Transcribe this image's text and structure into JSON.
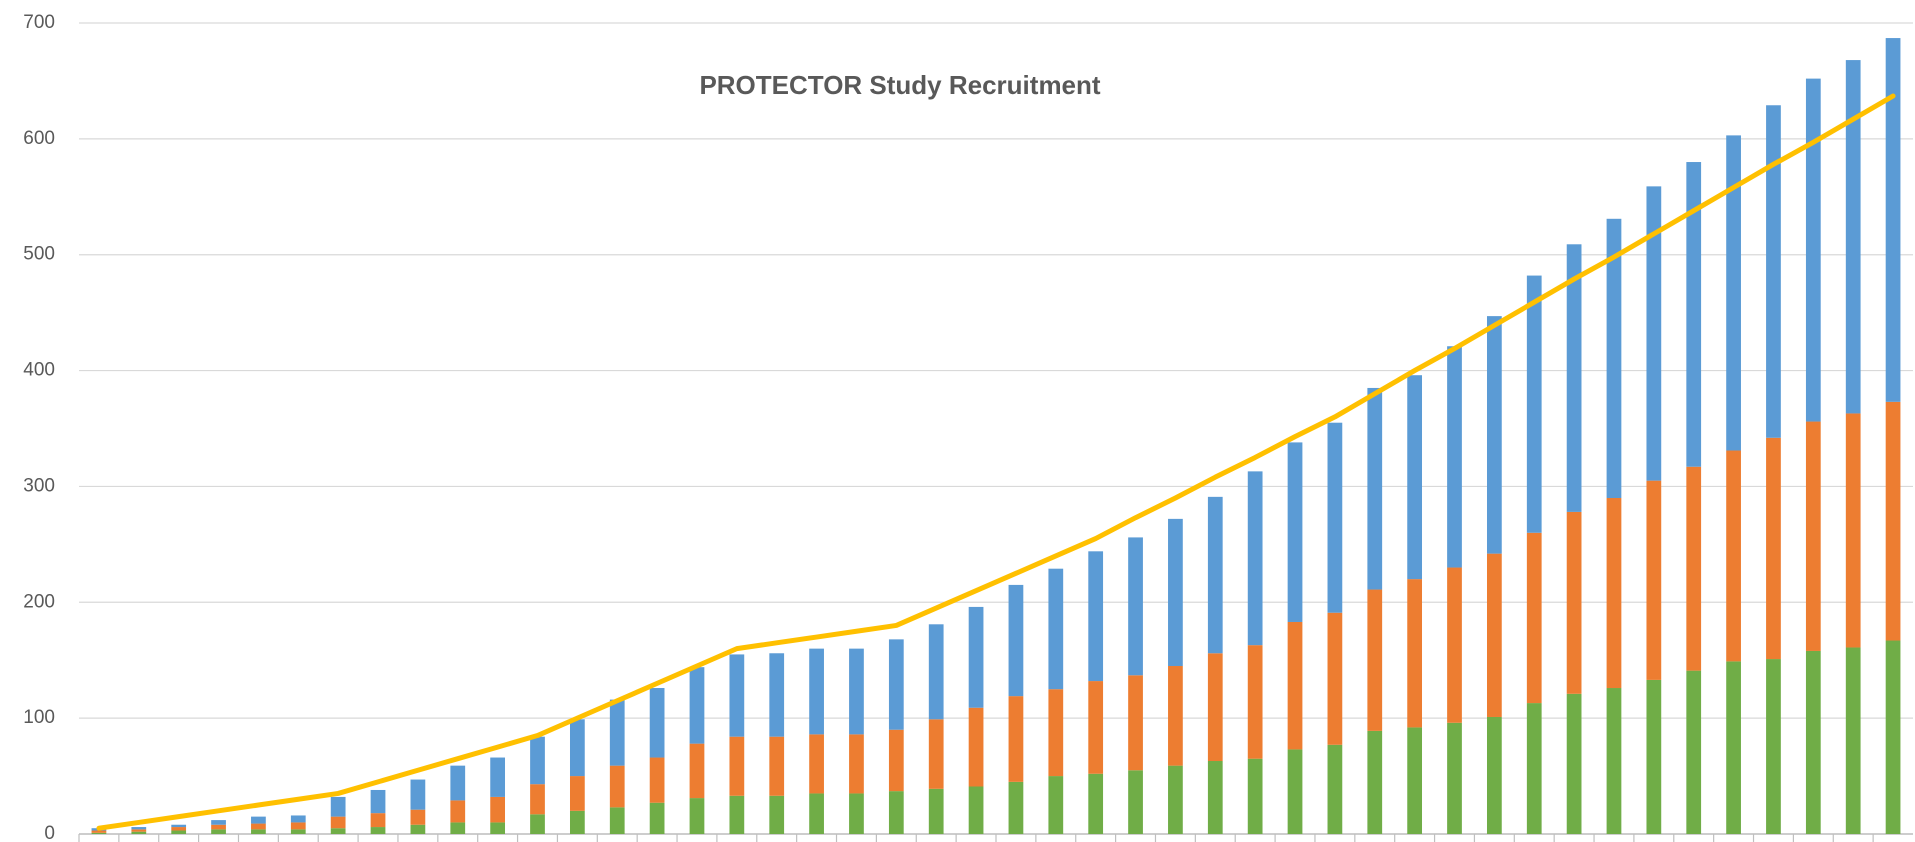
{
  "chart_data": {
    "type": "bar",
    "stacked": true,
    "title": "PROTECTOR Study Recruitment",
    "categories": [
      null,
      null,
      null,
      null,
      null,
      null,
      null,
      null,
      null,
      null,
      null,
      null,
      null,
      null,
      null,
      null,
      null,
      null,
      null,
      null,
      null,
      null,
      null,
      null,
      null,
      null,
      null,
      null,
      null,
      null,
      null,
      null,
      null,
      null,
      null,
      null,
      null,
      null,
      null,
      null,
      null,
      null,
      null,
      null,
      null,
      null
    ],
    "series": [
      {
        "color": "#70ad47",
        "values": [
          1,
          2,
          3,
          4,
          4,
          4,
          5,
          6,
          8,
          10,
          10,
          17,
          20,
          23,
          27,
          31,
          33,
          33,
          35,
          35,
          37,
          39,
          41,
          45,
          50,
          52,
          55,
          59,
          63,
          65,
          73,
          77,
          89,
          92,
          96,
          101,
          113,
          121,
          126,
          133,
          141,
          149,
          151,
          158,
          161,
          167
        ]
      },
      {
        "color": "#ed7d31",
        "values": [
          2,
          2,
          3,
          4,
          5,
          6,
          10,
          12,
          13,
          19,
          22,
          26,
          30,
          36,
          39,
          47,
          51,
          51,
          51,
          51,
          53,
          60,
          68,
          74,
          75,
          80,
          82,
          86,
          93,
          98,
          110,
          114,
          122,
          128,
          134,
          141,
          147,
          157,
          164,
          172,
          176,
          182,
          191,
          198,
          202,
          206
        ]
      },
      {
        "color": "#5b9bd5",
        "values": [
          2,
          2,
          2,
          4,
          6,
          6,
          17,
          20,
          26,
          30,
          34,
          41,
          49,
          57,
          60,
          66,
          71,
          72,
          74,
          74,
          78,
          82,
          87,
          96,
          104,
          112,
          119,
          127,
          135,
          150,
          155,
          164,
          174,
          176,
          191,
          205,
          222,
          231,
          241,
          254,
          263,
          272,
          287,
          296,
          305,
          314
        ]
      },
      {
        "type": "line",
        "color": "#ffc000",
        "values": [
          5,
          10,
          15,
          20,
          25,
          30,
          35,
          45,
          55,
          65,
          75,
          85,
          100,
          115,
          130,
          145,
          160,
          165,
          170,
          175,
          180,
          195,
          210,
          225,
          240,
          255,
          273,
          290,
          308,
          325,
          343,
          360,
          380,
          400,
          419,
          439,
          459,
          479,
          498,
          518,
          538,
          558,
          578,
          597,
          617,
          637
        ]
      }
    ],
    "ylim": [
      0,
      700
    ],
    "yticks": [
      0,
      100,
      200,
      300,
      400,
      500,
      600,
      700
    ],
    "grid": true
  }
}
